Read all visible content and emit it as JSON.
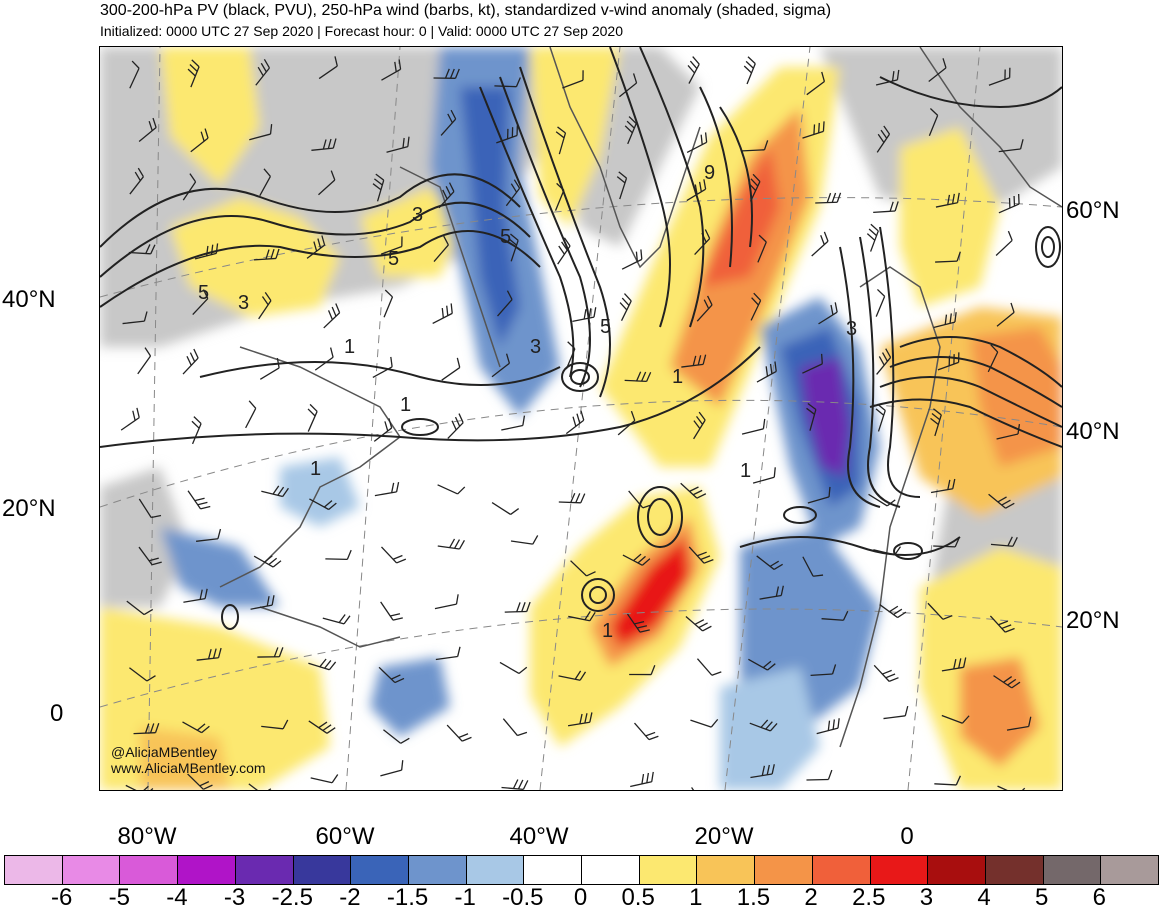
{
  "header": {
    "title": "300-200-hPa PV (black, PVU), 250-hPa wind (barbs, kt), standardized v-wind anomaly (shaded, sigma)",
    "subtitle": "Initialized: 0000 UTC 27 Sep 2020 | Forecast hour: 0 | Valid: 0000 UTC 27 Sep 2020"
  },
  "map": {
    "left_lat_labels": [
      "40°N",
      "20°N",
      "0"
    ],
    "right_lat_labels": [
      "60°N",
      "40°N",
      "20°N"
    ],
    "lon_labels": [
      "80°W",
      "60°W",
      "40°W",
      "20°W",
      "0"
    ],
    "contour_labels": [
      "5",
      "3",
      "5",
      "3",
      "1",
      "5",
      "3",
      "5",
      "9",
      "1",
      "3",
      "1",
      "1",
      "1",
      "1"
    ],
    "credit_handle": "@AliciaMBentley",
    "credit_url": "www.AliciaMBentley.com"
  },
  "colorbar": {
    "colors": [
      "#ecb8e8",
      "#e88ae6",
      "#d95ad9",
      "#b014c8",
      "#6a2ab0",
      "#38389c",
      "#3a64b8",
      "#6e94cc",
      "#a8c8e6",
      "#ffffff",
      "#ffffff",
      "#fce870",
      "#f8c458",
      "#f49448",
      "#f0603a",
      "#e81818",
      "#a80e0e",
      "#74302c",
      "#74686a",
      "#a89a9a"
    ],
    "ticks": [
      "-6",
      "-5",
      "-4",
      "-3",
      "-2.5",
      "-2",
      "-1.5",
      "-1",
      "-0.5",
      "0",
      "0.5",
      "1",
      "1.5",
      "2",
      "2.5",
      "3",
      "4",
      "5",
      "6"
    ]
  }
}
